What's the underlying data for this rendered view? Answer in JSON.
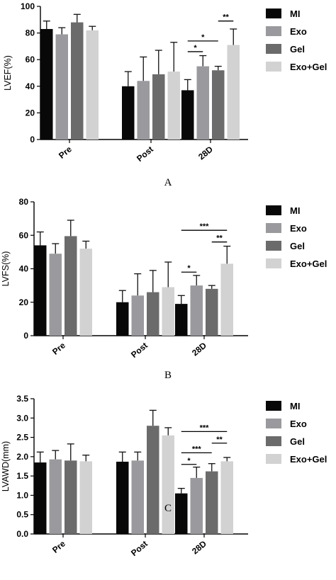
{
  "colors": {
    "MI": "#080808",
    "Exo": "#9a9a9e",
    "Gel": "#6b6b6b",
    "Exo+Gel": "#d2d2d2"
  },
  "chart_data": [
    {
      "type": "bar",
      "panel_label": "A",
      "ylabel": "LVEF(%)",
      "ylim": [
        0,
        100
      ],
      "yticks": [
        "0",
        "20",
        "40",
        "60",
        "80",
        "100"
      ],
      "categories": [
        "Pre",
        "Post",
        "28D"
      ],
      "legend": [
        "MI",
        "Exo",
        "Gel",
        "Exo+Gel"
      ],
      "series": [
        {
          "name": "MI",
          "values": [
            83,
            40,
            37
          ],
          "errors": [
            6,
            11,
            8
          ]
        },
        {
          "name": "Exo",
          "values": [
            79,
            44,
            55
          ],
          "errors": [
            5,
            18,
            8
          ]
        },
        {
          "name": "Gel",
          "values": [
            88,
            49,
            52
          ],
          "errors": [
            6,
            18,
            3
          ]
        },
        {
          "name": "Exo+Gel",
          "values": [
            82,
            51,
            71
          ],
          "errors": [
            3,
            22,
            12
          ]
        }
      ],
      "significance": [
        {
          "category": "28D",
          "from": "MI",
          "to": "Exo",
          "label": "*",
          "y": 66
        },
        {
          "category": "28D",
          "from": "MI",
          "to": "Gel",
          "label": "*",
          "y": 74
        },
        {
          "category": "28D",
          "from": "Gel",
          "to": "Exo+Gel",
          "label": "**",
          "y": 89
        }
      ]
    },
    {
      "type": "bar",
      "panel_label": "B",
      "ylabel": "LVFS(%)",
      "ylim": [
        0,
        80
      ],
      "yticks": [
        "0",
        "20",
        "40",
        "60",
        "80"
      ],
      "categories": [
        "Pre",
        "Post",
        "28D"
      ],
      "legend": [
        "MI",
        "Exo",
        "Gel",
        "Exo+Gel"
      ],
      "series": [
        {
          "name": "MI",
          "values": [
            54,
            20,
            19
          ],
          "errors": [
            8,
            7,
            5
          ]
        },
        {
          "name": "Exo",
          "values": [
            49,
            24,
            30
          ],
          "errors": [
            6,
            13,
            6
          ]
        },
        {
          "name": "Gel",
          "values": [
            59.5,
            26,
            28
          ],
          "errors": [
            9.5,
            13,
            2
          ]
        },
        {
          "name": "Exo+Gel",
          "values": [
            52,
            29,
            43
          ],
          "errors": [
            4.5,
            15,
            10.5
          ]
        }
      ],
      "significance": [
        {
          "category": "28D",
          "from": "MI",
          "to": "Exo",
          "label": "*",
          "y": 38
        },
        {
          "category": "28D",
          "from": "Gel",
          "to": "Exo+Gel",
          "label": "**",
          "y": 56
        },
        {
          "category": "28D",
          "from": "MI",
          "to": "Exo+Gel",
          "label": "***",
          "y": 63
        }
      ]
    },
    {
      "type": "bar",
      "panel_label": "C",
      "ylabel": "LVAWD(mm)",
      "ylim": [
        0,
        3.5
      ],
      "yticks": [
        "0.0",
        "0.5",
        "1.0",
        "1.5",
        "2.0",
        "2.5",
        "3.0",
        "3.5"
      ],
      "categories": [
        "Pre",
        "Post",
        "28D"
      ],
      "legend": [
        "MI",
        "Exo",
        "Gel",
        "Exo+Gel"
      ],
      "series": [
        {
          "name": "MI",
          "values": [
            1.85,
            1.87,
            1.05
          ],
          "errors": [
            0.27,
            0.25,
            0.13
          ]
        },
        {
          "name": "Exo",
          "values": [
            1.93,
            1.9,
            1.45
          ],
          "errors": [
            0.23,
            0.22,
            0.28
          ]
        },
        {
          "name": "Gel",
          "values": [
            1.9,
            2.8,
            1.62
          ],
          "errors": [
            0.43,
            0.4,
            0.2
          ]
        },
        {
          "name": "Exo+Gel",
          "values": [
            1.88,
            2.55,
            1.88
          ],
          "errors": [
            0.16,
            0.2,
            0.1
          ]
        }
      ],
      "significance": [
        {
          "category": "28D",
          "from": "MI",
          "to": "Exo",
          "label": "*",
          "y": 1.8
        },
        {
          "category": "28D",
          "from": "MI",
          "to": "Gel",
          "label": "***",
          "y": 2.1
        },
        {
          "category": "28D",
          "from": "Gel",
          "to": "Exo+Gel",
          "label": "**",
          "y": 2.35
        },
        {
          "category": "28D",
          "from": "MI",
          "to": "Exo+Gel",
          "label": "***",
          "y": 2.65
        }
      ]
    }
  ]
}
